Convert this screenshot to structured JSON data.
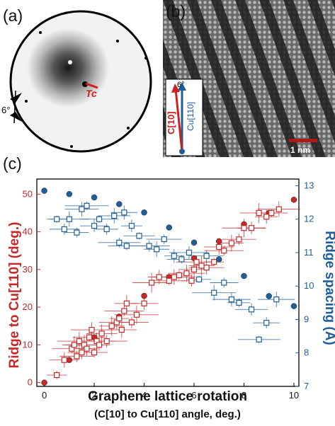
{
  "panel_a": {
    "label": "(a)",
    "angle_label": "6°",
    "marker_label": "Tc",
    "colors": {
      "background": "#f2f2f2",
      "ring": "#000000",
      "marker": "#cc1f1f"
    }
  },
  "panel_b": {
    "label": "(b)",
    "angle_label": "6°",
    "c10_label": "C[10]",
    "cu110_label": "Cu[110]",
    "scalebar_label": "1 nm",
    "colors": {
      "red": "#cc1f1f",
      "blue": "#1f5f99",
      "scalebar": "#b01818"
    }
  },
  "panel_c": {
    "label": "(c)"
  },
  "chart_data": {
    "type": "scatter",
    "xlabel": "Graphene lattice rotation",
    "xlabel_sub": "(C[10] to Cu[110] angle, deg.)",
    "ylabel_left": "Ridge to Cu[110] (deg.)",
    "ylabel_right": "Ridge spacing (Å)",
    "xlim": [
      -0.3,
      10.2
    ],
    "ylim_left": [
      -1,
      54
    ],
    "ylim_right": [
      7,
      13.2
    ],
    "xticks": [
      0,
      2,
      4,
      6,
      8,
      10
    ],
    "yticks_left": [
      0,
      10,
      20,
      30,
      40,
      50
    ],
    "yticks_right": [
      7,
      8,
      9,
      10,
      11,
      12,
      13
    ],
    "colors": {
      "red": "#c62828",
      "blue": "#1f5f99"
    },
    "series": [
      {
        "axis": "left",
        "marker": "filled-circle",
        "color": "#c62828",
        "x": [
          0,
          1,
          2,
          3,
          4,
          5,
          6,
          7,
          8,
          9,
          10
        ],
        "y": [
          0,
          6,
          12,
          17.5,
          23,
          28,
          33,
          37.5,
          42,
          45,
          48.5
        ]
      },
      {
        "axis": "left",
        "marker": "open-square",
        "color": "#c62828",
        "x": [
          0.5,
          0.8,
          1.1,
          1.2,
          1.3,
          1.4,
          1.5,
          1.6,
          1.7,
          1.8,
          1.9,
          2.0,
          2.1,
          2.2,
          2.3,
          2.5,
          2.7,
          2.9,
          3.0,
          3.1,
          3.2,
          3.3,
          3.5,
          3.7,
          4.0,
          4.3,
          4.6,
          5.0,
          5.2,
          5.4,
          5.7,
          5.9,
          6.0,
          6.1,
          6.3,
          6.5,
          6.8,
          7.0,
          7.2,
          7.5,
          7.8,
          8.0,
          8.3,
          8.6,
          8.9,
          9.1,
          9.4
        ],
        "y": [
          2,
          6,
          9,
          10,
          7,
          11,
          8,
          10,
          9,
          12,
          14,
          8,
          11,
          10,
          13,
          11,
          15,
          16,
          17,
          14,
          19,
          21,
          16,
          18,
          21,
          26.5,
          28,
          27,
          28,
          28.5,
          29,
          27,
          30,
          32,
          31,
          30.5,
          32,
          36,
          35,
          37,
          38,
          41,
          41,
          45,
          44,
          45,
          46
        ]
      },
      {
        "axis": "right",
        "marker": "filled-circle",
        "color": "#1f5f99",
        "x": [
          0,
          1,
          2,
          3,
          4,
          5,
          6,
          7,
          8,
          9,
          10
        ],
        "y": [
          12.85,
          12.75,
          12.65,
          12.45,
          12.2,
          11.75,
          11.3,
          10.8,
          10.3,
          9.7,
          9.4
        ]
      },
      {
        "axis": "right",
        "marker": "open-square",
        "color": "#1f5f99",
        "x": [
          0.5,
          0.8,
          1.0,
          1.3,
          1.5,
          1.7,
          2.0,
          2.2,
          2.5,
          2.8,
          3.0,
          3.2,
          3.3,
          3.5,
          3.8,
          4.2,
          4.5,
          4.8,
          5.2,
          5.5,
          5.8,
          6.2,
          6.5,
          6.8,
          7.2,
          7.5,
          7.8,
          8.3,
          8.6,
          8.9,
          9.3
        ],
        "y": [
          12.0,
          11.7,
          12.0,
          11.6,
          12.3,
          12.4,
          11.8,
          12.0,
          11.7,
          12.1,
          11.3,
          12.2,
          11.2,
          11.8,
          11.5,
          11.2,
          11.1,
          11.4,
          10.9,
          10.8,
          11.0,
          10.2,
          10.9,
          9.8,
          10.1,
          9.6,
          9.5,
          9.3,
          8.4,
          8.9,
          9.6
        ]
      }
    ]
  }
}
